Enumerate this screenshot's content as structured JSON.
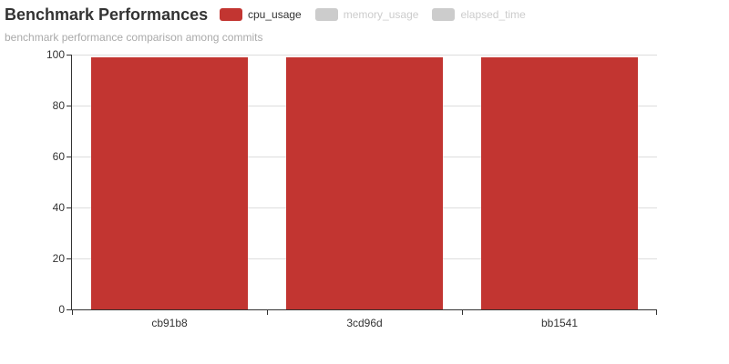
{
  "header": {
    "title": "Benchmark Performances",
    "subtitle": "benchmark performance comparison among commits"
  },
  "legend": {
    "items": [
      {
        "label": "cpu_usage",
        "color": "#c23531",
        "text_color": "#333333",
        "selected": true
      },
      {
        "label": "memory_usage",
        "color": "#cccccc",
        "text_color": "#cccccc",
        "selected": false
      },
      {
        "label": "elapsed_time",
        "color": "#cccccc",
        "text_color": "#cccccc",
        "selected": false
      }
    ]
  },
  "chart_data": {
    "type": "bar",
    "title": "Benchmark Performances",
    "subtitle": "benchmark performance comparison among commits",
    "categories": [
      "cb91b8",
      "3cd96d",
      "bb1541"
    ],
    "series": [
      {
        "name": "cpu_usage",
        "values": [
          99,
          99,
          99
        ],
        "color": "#c23531",
        "visible": true
      }
    ],
    "legend_entries": [
      "cpu_usage",
      "memory_usage",
      "elapsed_time"
    ],
    "legend_disabled": [
      "memory_usage",
      "elapsed_time"
    ],
    "legend_position": "top",
    "xlabel": "",
    "ylabel": "",
    "ylim": [
      0,
      100
    ],
    "yticks": [
      0,
      20,
      40,
      60,
      80,
      100
    ],
    "grid": true,
    "bar_width_fraction": 0.8,
    "colors": {
      "bar": "#c23531",
      "axis": "#333333",
      "gridline": "#dddddd",
      "inactive": "#cccccc",
      "subtitle_text": "#aaaaaa"
    }
  }
}
